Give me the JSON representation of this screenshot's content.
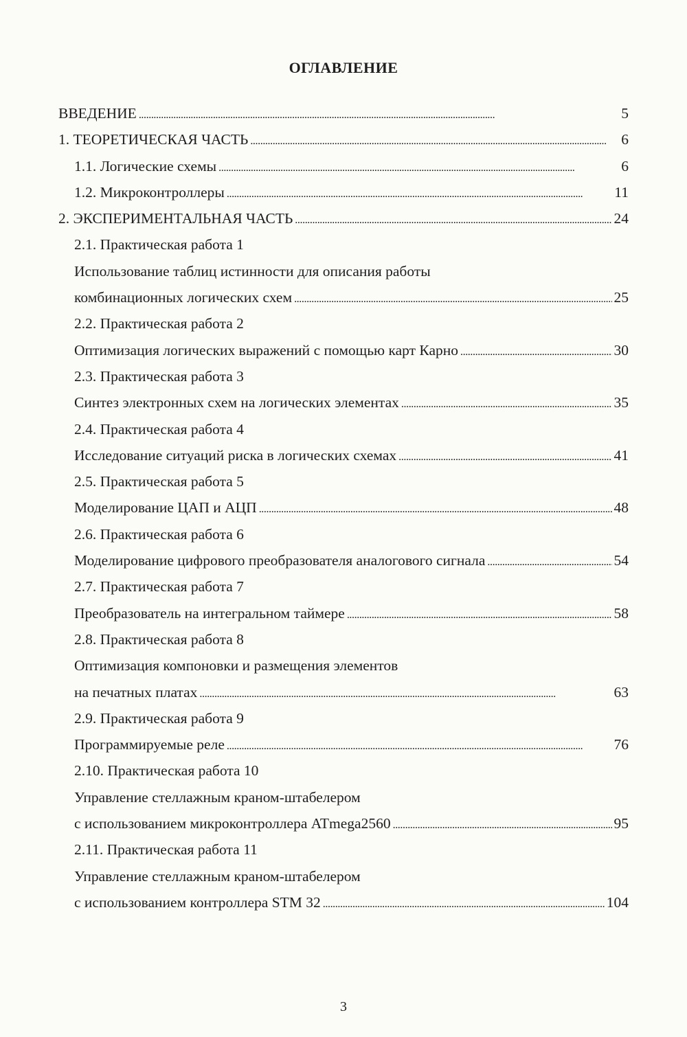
{
  "title": "ОГЛАВЛЕНИЕ",
  "entries": [
    {
      "text": "ВВЕДЕНИЕ",
      "page": "5",
      "indent": 0
    },
    {
      "text": "1. ТЕОРЕТИЧЕСКАЯ ЧАСТЬ",
      "page": "6",
      "indent": 0
    },
    {
      "text": "1.1. Логические схемы",
      "page": "6",
      "indent": 1
    },
    {
      "text": "1.2. Микроконтроллеры",
      "page": "11",
      "indent": 1
    },
    {
      "text": "2. ЭКСПЕРИМЕНТАЛЬНАЯ ЧАСТЬ",
      "page": "24",
      "indent": 0
    },
    {
      "text": "2.1. Практическая работа 1",
      "indent": 1
    },
    {
      "text": "Использование таблиц истинности для описания работы",
      "indent": 1
    },
    {
      "text": "комбинационных логических схем",
      "page": "25",
      "indent": 1
    },
    {
      "text": "2.2. Практическая работа 2",
      "indent": 1
    },
    {
      "text": "Оптимизация логических выражений с помощью карт Карно",
      "page": "30",
      "indent": 1
    },
    {
      "text": "2.3. Практическая работа 3",
      "indent": 1
    },
    {
      "text": "Синтез электронных схем на логических элементах",
      "page": "35",
      "indent": 1
    },
    {
      "text": "2.4. Практическая работа 4",
      "indent": 1
    },
    {
      "text": "Исследование ситуаций риска в логических схемах",
      "page": "41",
      "indent": 1
    },
    {
      "text": "2.5. Практическая работа 5",
      "indent": 1
    },
    {
      "text": "Моделирование ЦАП и АЦП",
      "page": "48",
      "indent": 1
    },
    {
      "text": "2.6. Практическая работа 6",
      "indent": 1
    },
    {
      "text": "Моделирование цифрового преобразователя аналогового сигнала",
      "page": "54",
      "indent": 1
    },
    {
      "text": "2.7. Практическая работа 7",
      "indent": 1
    },
    {
      "text": "Преобразователь на интегральном таймере",
      "page": "58",
      "indent": 1
    },
    {
      "text": "2.8. Практическая работа 8",
      "indent": 1
    },
    {
      "text": "Оптимизация компоновки и размещения элементов",
      "indent": 1
    },
    {
      "text": "на печатных платах",
      "page": "63",
      "indent": 1
    },
    {
      "text": "2.9. Практическая работа 9",
      "indent": 1
    },
    {
      "text": "Программируемые реле",
      "page": "76",
      "indent": 1
    },
    {
      "text": "2.10. Практическая работа 10",
      "indent": 1
    },
    {
      "text": "Управление стеллажным краном-штабелером",
      "indent": 1
    },
    {
      "text": "с использованием микроконтроллера ATmega2560",
      "page": "95",
      "indent": 1
    },
    {
      "text": "2.11. Практическая работа 11",
      "indent": 1
    },
    {
      "text": "Управление стеллажным краном-штабелером",
      "indent": 1
    },
    {
      "text": "с использованием контроллера STM 32",
      "page": "104",
      "indent": 1
    }
  ],
  "page_number": "3"
}
